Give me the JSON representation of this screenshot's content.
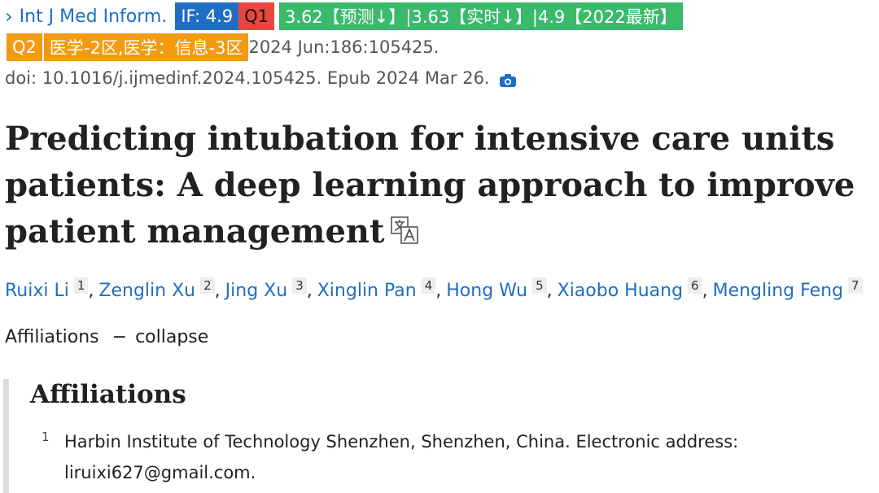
{
  "citation": {
    "journal": "Int J Med Inform.",
    "if_badge": "IF: 4.9",
    "q1_badge": "Q1",
    "metrics_badge": "3.62【预测↓】|3.63【实时↓】|4.9【2022最新】",
    "q2_badge": "Q2",
    "zone_badge": "医学-2区,医学：信息-3区",
    "volume": "2024 Jun:186:105425.",
    "doi_line": "doi: 10.1016/j.ijmedinf.2024.105425. Epub 2024 Mar 26."
  },
  "title": "Predicting intubation for intensive care units patients: A deep learning approach to improve patient management",
  "authors": [
    {
      "name": "Ruixi Li",
      "sup": "1"
    },
    {
      "name": "Zenglin Xu",
      "sup": "2"
    },
    {
      "name": "Jing Xu",
      "sup": "3"
    },
    {
      "name": "Xinglin Pan",
      "sup": "4"
    },
    {
      "name": "Hong Wu",
      "sup": "5"
    },
    {
      "name": "Xiaobo Huang",
      "sup": "6"
    },
    {
      "name": "Mengling Feng",
      "sup": "7"
    }
  ],
  "affiliations_toggle": {
    "label": "Affiliations",
    "action": "collapse"
  },
  "affiliations": {
    "heading": "Affiliations",
    "items": [
      {
        "num": "1",
        "text": "Harbin Institute of Technology Shenzhen, Shenzhen, China. Electronic address: liruixi627@gmail.com."
      }
    ]
  },
  "colors": {
    "link": "#1f6ec3",
    "if": "#1f6ec3",
    "q1": "#e8473f",
    "metrics": "#3bba6c",
    "q2": "#f29a12"
  },
  "icons": [
    "chevron-right-icon",
    "camera-icon",
    "translate-icon"
  ]
}
